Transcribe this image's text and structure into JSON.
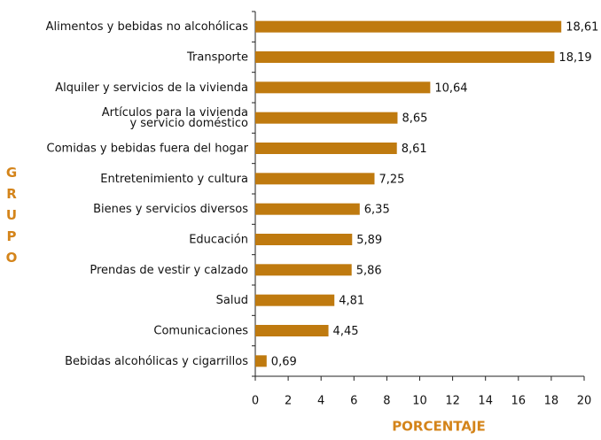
{
  "chart_data": {
    "type": "bar",
    "orientation": "horizontal",
    "categories": [
      "Alimentos y bebidas no alcohólicas",
      "Transporte",
      "Alquiler y servicios de la vivienda",
      "Artículos para la vivienda\ny servicio doméstico",
      "Comidas y bebidas fuera del hogar",
      "Entretenimiento y cultura",
      "Bienes y servicios diversos",
      "Educación",
      "Prendas de vestir y calzado",
      "Salud",
      "Comunicaciones",
      "Bebidas alcohólicas y cigarrillos"
    ],
    "values": [
      18.61,
      18.19,
      10.64,
      8.65,
      8.61,
      7.25,
      6.35,
      5.89,
      5.86,
      4.81,
      4.45,
      0.69
    ],
    "value_labels": [
      "18,61",
      "18,19",
      "10,64",
      "8,65",
      "8,61",
      "7,25",
      "6,35",
      "5,89",
      "5,86",
      "4,81",
      "4,45",
      "0,69"
    ],
    "color": "#bf7a0f",
    "xlabel": "PORCENTAJE",
    "ylabel": "GRUPO",
    "xlim": [
      0,
      20
    ],
    "xticks": [
      0,
      2,
      4,
      6,
      8,
      10,
      12,
      14,
      16,
      18,
      20
    ]
  }
}
